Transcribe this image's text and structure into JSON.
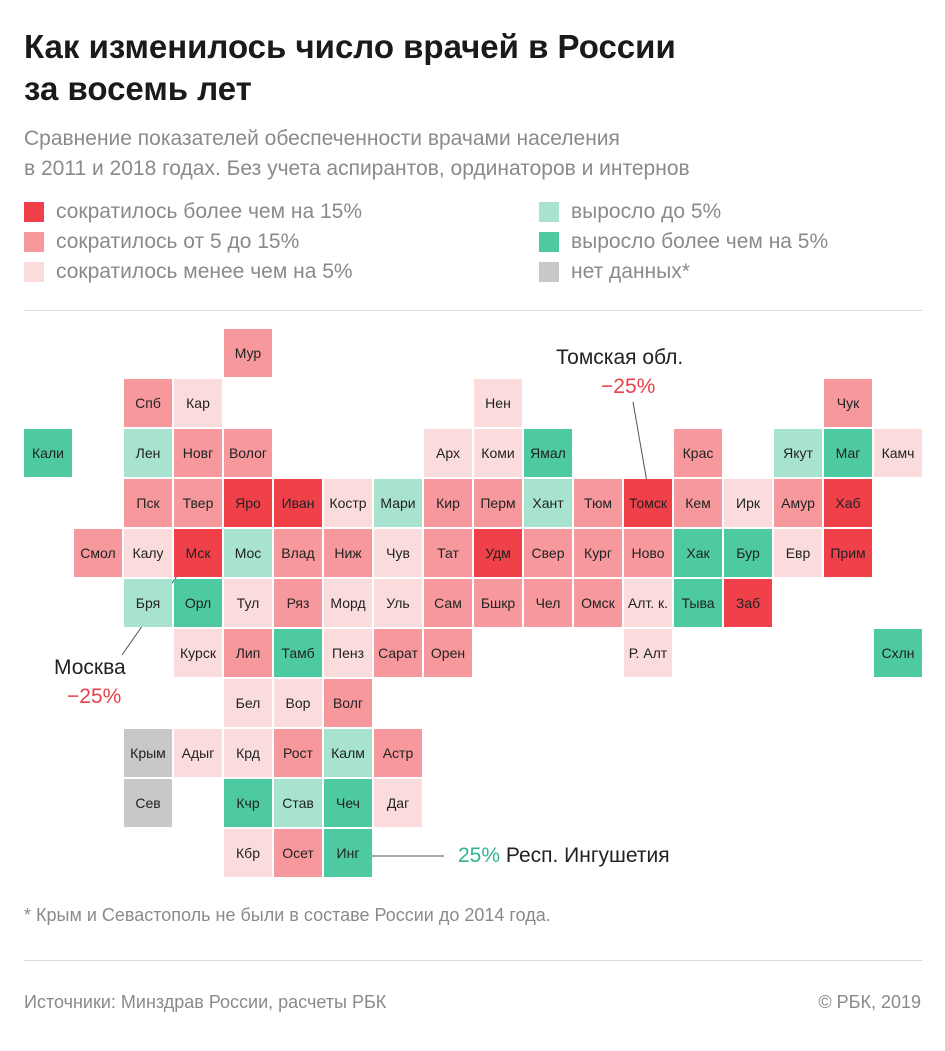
{
  "title_line1": "Как изменилось число врачей в России",
  "title_line2": "за восемь лет",
  "subtitle_line1": "Сравнение показателей обеспеченности врачами населения",
  "subtitle_line2": "в 2011 и 2018 годах. Без учета аспирантов, ординаторов и интернов",
  "colors": {
    "dec15": "#f0414b",
    "dec5_15": "#f7999c",
    "dec5": "#fbdcdc",
    "inc5": "#a7e3cf",
    "incmore": "#4ecaa2",
    "nodata": "#c8c8c8"
  },
  "legend": [
    {
      "label": "сократилось более чем на 15%",
      "category": "dec15"
    },
    {
      "label": "сократилось от 5 до 15%",
      "category": "dec5_15"
    },
    {
      "label": "сократилось менее чем на 5%",
      "category": "dec5"
    },
    {
      "label": "выросло до 5%",
      "category": "inc5"
    },
    {
      "label": "выросло более чем на 5%",
      "category": "incmore"
    },
    {
      "label": "нет данных*",
      "category": "nodata"
    }
  ],
  "regions": [
    {
      "label": "Мур",
      "col": 4,
      "row": 0,
      "category": "dec5_15"
    },
    {
      "label": "Спб",
      "col": 2,
      "row": 1,
      "category": "dec5_15"
    },
    {
      "label": "Кар",
      "col": 3,
      "row": 1,
      "category": "dec5"
    },
    {
      "label": "Нен",
      "col": 9,
      "row": 1,
      "category": "dec5"
    },
    {
      "label": "Чук",
      "col": 16,
      "row": 1,
      "category": "dec5_15"
    },
    {
      "label": "Кали",
      "col": 0,
      "row": 2,
      "category": "incmore"
    },
    {
      "label": "Лен",
      "col": 2,
      "row": 2,
      "category": "inc5"
    },
    {
      "label": "Новг",
      "col": 3,
      "row": 2,
      "category": "dec5_15"
    },
    {
      "label": "Волог",
      "col": 4,
      "row": 2,
      "category": "dec5_15"
    },
    {
      "label": "Арх",
      "col": 8,
      "row": 2,
      "category": "dec5"
    },
    {
      "label": "Коми",
      "col": 9,
      "row": 2,
      "category": "dec5"
    },
    {
      "label": "Ямал",
      "col": 10,
      "row": 2,
      "category": "incmore"
    },
    {
      "label": "Крас",
      "col": 13,
      "row": 2,
      "category": "dec5_15"
    },
    {
      "label": "Якут",
      "col": 15,
      "row": 2,
      "category": "inc5"
    },
    {
      "label": "Маг",
      "col": 16,
      "row": 2,
      "category": "incmore"
    },
    {
      "label": "Камч",
      "col": 17,
      "row": 2,
      "category": "dec5"
    },
    {
      "label": "Пск",
      "col": 2,
      "row": 3,
      "category": "dec5_15"
    },
    {
      "label": "Твер",
      "col": 3,
      "row": 3,
      "category": "dec5_15"
    },
    {
      "label": "Яро",
      "col": 4,
      "row": 3,
      "category": "dec15"
    },
    {
      "label": "Иван",
      "col": 5,
      "row": 3,
      "category": "dec15"
    },
    {
      "label": "Костр",
      "col": 6,
      "row": 3,
      "category": "dec5"
    },
    {
      "label": "Мари",
      "col": 7,
      "row": 3,
      "category": "inc5"
    },
    {
      "label": "Кир",
      "col": 8,
      "row": 3,
      "category": "dec5_15"
    },
    {
      "label": "Перм",
      "col": 9,
      "row": 3,
      "category": "dec5_15"
    },
    {
      "label": "Хант",
      "col": 10,
      "row": 3,
      "category": "inc5"
    },
    {
      "label": "Тюм",
      "col": 11,
      "row": 3,
      "category": "dec5_15"
    },
    {
      "label": "Томск",
      "col": 12,
      "row": 3,
      "category": "dec15"
    },
    {
      "label": "Кем",
      "col": 13,
      "row": 3,
      "category": "dec5_15"
    },
    {
      "label": "Ирк",
      "col": 14,
      "row": 3,
      "category": "dec5"
    },
    {
      "label": "Амур",
      "col": 15,
      "row": 3,
      "category": "dec5_15"
    },
    {
      "label": "Хаб",
      "col": 16,
      "row": 3,
      "category": "dec15"
    },
    {
      "label": "Смол",
      "col": 1,
      "row": 4,
      "category": "dec5_15"
    },
    {
      "label": "Калу",
      "col": 2,
      "row": 4,
      "category": "dec5"
    },
    {
      "label": "Мск",
      "col": 3,
      "row": 4,
      "category": "dec15"
    },
    {
      "label": "Мос",
      "col": 4,
      "row": 4,
      "category": "inc5"
    },
    {
      "label": "Влад",
      "col": 5,
      "row": 4,
      "category": "dec5_15"
    },
    {
      "label": "Ниж",
      "col": 6,
      "row": 4,
      "category": "dec5_15"
    },
    {
      "label": "Чув",
      "col": 7,
      "row": 4,
      "category": "dec5"
    },
    {
      "label": "Тат",
      "col": 8,
      "row": 4,
      "category": "dec5_15"
    },
    {
      "label": "Удм",
      "col": 9,
      "row": 4,
      "category": "dec15"
    },
    {
      "label": "Свер",
      "col": 10,
      "row": 4,
      "category": "dec5_15"
    },
    {
      "label": "Кург",
      "col": 11,
      "row": 4,
      "category": "dec5_15"
    },
    {
      "label": "Ново",
      "col": 12,
      "row": 4,
      "category": "dec5_15"
    },
    {
      "label": "Хак",
      "col": 13,
      "row": 4,
      "category": "incmore"
    },
    {
      "label": "Бур",
      "col": 14,
      "row": 4,
      "category": "incmore"
    },
    {
      "label": "Евр",
      "col": 15,
      "row": 4,
      "category": "dec5"
    },
    {
      "label": "Прим",
      "col": 16,
      "row": 4,
      "category": "dec15"
    },
    {
      "label": "Бря",
      "col": 2,
      "row": 5,
      "category": "inc5"
    },
    {
      "label": "Орл",
      "col": 3,
      "row": 5,
      "category": "incmore"
    },
    {
      "label": "Тул",
      "col": 4,
      "row": 5,
      "category": "dec5"
    },
    {
      "label": "Ряз",
      "col": 5,
      "row": 5,
      "category": "dec5_15"
    },
    {
      "label": "Морд",
      "col": 6,
      "row": 5,
      "category": "dec5"
    },
    {
      "label": "Уль",
      "col": 7,
      "row": 5,
      "category": "dec5"
    },
    {
      "label": "Сам",
      "col": 8,
      "row": 5,
      "category": "dec5_15"
    },
    {
      "label": "Бшкр",
      "col": 9,
      "row": 5,
      "category": "dec5_15"
    },
    {
      "label": "Чел",
      "col": 10,
      "row": 5,
      "category": "dec5_15"
    },
    {
      "label": "Омск",
      "col": 11,
      "row": 5,
      "category": "dec5_15"
    },
    {
      "label": "Алт. к.",
      "col": 12,
      "row": 5,
      "category": "dec5"
    },
    {
      "label": "Тыва",
      "col": 13,
      "row": 5,
      "category": "incmore"
    },
    {
      "label": "Заб",
      "col": 14,
      "row": 5,
      "category": "dec15"
    },
    {
      "label": "Курск",
      "col": 3,
      "row": 6,
      "category": "dec5"
    },
    {
      "label": "Лип",
      "col": 4,
      "row": 6,
      "category": "dec5_15"
    },
    {
      "label": "Тамб",
      "col": 5,
      "row": 6,
      "category": "incmore"
    },
    {
      "label": "Пенз",
      "col": 6,
      "row": 6,
      "category": "dec5"
    },
    {
      "label": "Сарат",
      "col": 7,
      "row": 6,
      "category": "dec5_15"
    },
    {
      "label": "Орен",
      "col": 8,
      "row": 6,
      "category": "dec5_15"
    },
    {
      "label": "Р. Алт",
      "col": 12,
      "row": 6,
      "category": "dec5"
    },
    {
      "label": "Схлн",
      "col": 17,
      "row": 6,
      "category": "incmore"
    },
    {
      "label": "Бел",
      "col": 4,
      "row": 7,
      "category": "dec5"
    },
    {
      "label": "Вор",
      "col": 5,
      "row": 7,
      "category": "dec5"
    },
    {
      "label": "Волг",
      "col": 6,
      "row": 7,
      "category": "dec5_15"
    },
    {
      "label": "Крым",
      "col": 2,
      "row": 8,
      "category": "nodata"
    },
    {
      "label": "Адыг",
      "col": 3,
      "row": 8,
      "category": "dec5"
    },
    {
      "label": "Крд",
      "col": 4,
      "row": 8,
      "category": "dec5"
    },
    {
      "label": "Рост",
      "col": 5,
      "row": 8,
      "category": "dec5_15"
    },
    {
      "label": "Калм",
      "col": 6,
      "row": 8,
      "category": "inc5"
    },
    {
      "label": "Астр",
      "col": 7,
      "row": 8,
      "category": "dec5_15"
    },
    {
      "label": "Сев",
      "col": 2,
      "row": 9,
      "category": "nodata"
    },
    {
      "label": "Кчр",
      "col": 4,
      "row": 9,
      "category": "incmore"
    },
    {
      "label": "Став",
      "col": 5,
      "row": 9,
      "category": "inc5"
    },
    {
      "label": "Чеч",
      "col": 6,
      "row": 9,
      "category": "incmore"
    },
    {
      "label": "Даг",
      "col": 7,
      "row": 9,
      "category": "dec5"
    },
    {
      "label": "Кбр",
      "col": 4,
      "row": 10,
      "category": "dec5"
    },
    {
      "label": "Осет",
      "col": 5,
      "row": 10,
      "category": "dec5_15"
    },
    {
      "label": "Инг",
      "col": 6,
      "row": 10,
      "category": "incmore"
    }
  ],
  "annotations": {
    "tomsk_name": "Томская обл.",
    "tomsk_value": "−25%",
    "moscow_name": "Москва",
    "moscow_value": "−25%",
    "ingush_value": "25%",
    "ingush_name": "Респ. Ингушетия"
  },
  "footnote": "* Крым и Севастополь не были в составе России до 2014 года.",
  "source": "Источники: Минздрав России, расчеты РБК",
  "copyright": "© РБК, 2019"
}
